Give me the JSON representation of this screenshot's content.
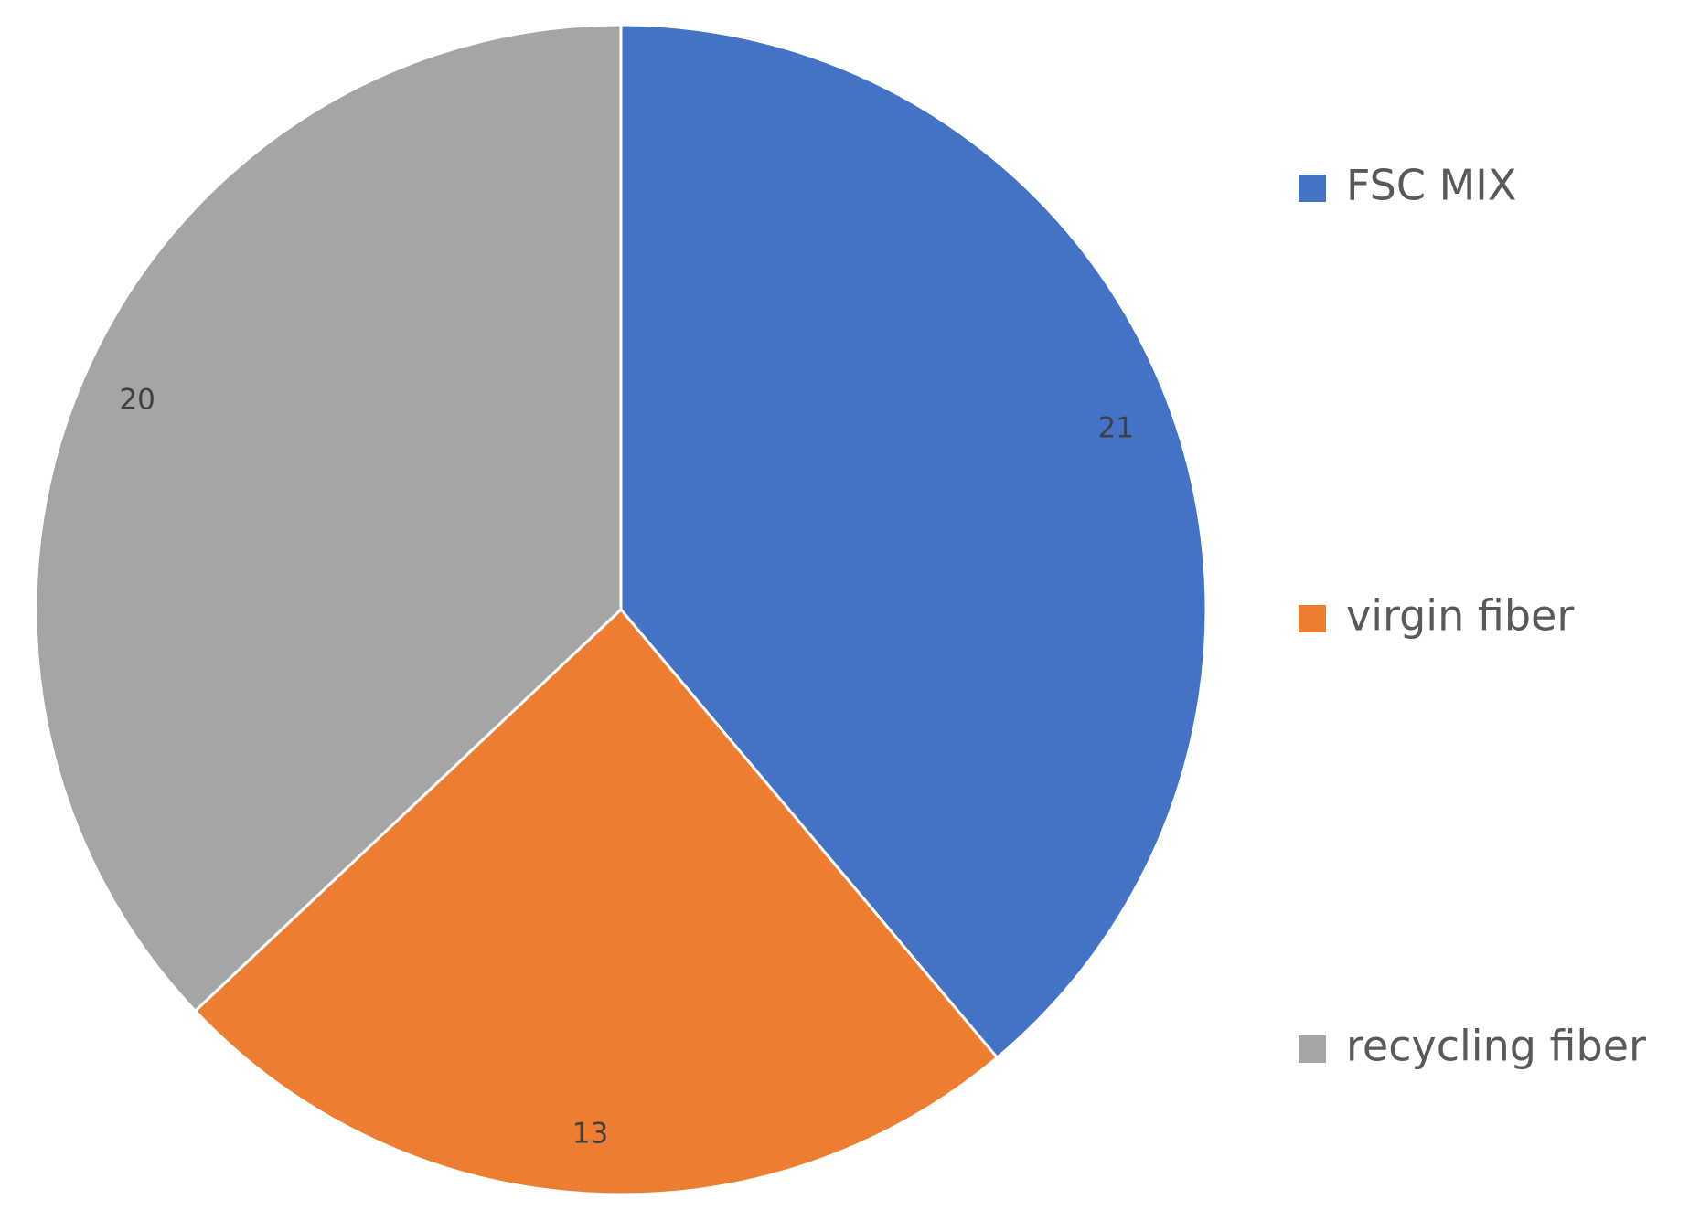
{
  "chart_data": {
    "type": "pie",
    "categories": [
      "FSC MIX",
      "virgin fiber",
      "recycling fiber"
    ],
    "values": [
      21,
      13,
      20
    ],
    "colors": [
      "#4472c4",
      "#ed7d31",
      "#a5a5a5"
    ],
    "legend": "right"
  }
}
